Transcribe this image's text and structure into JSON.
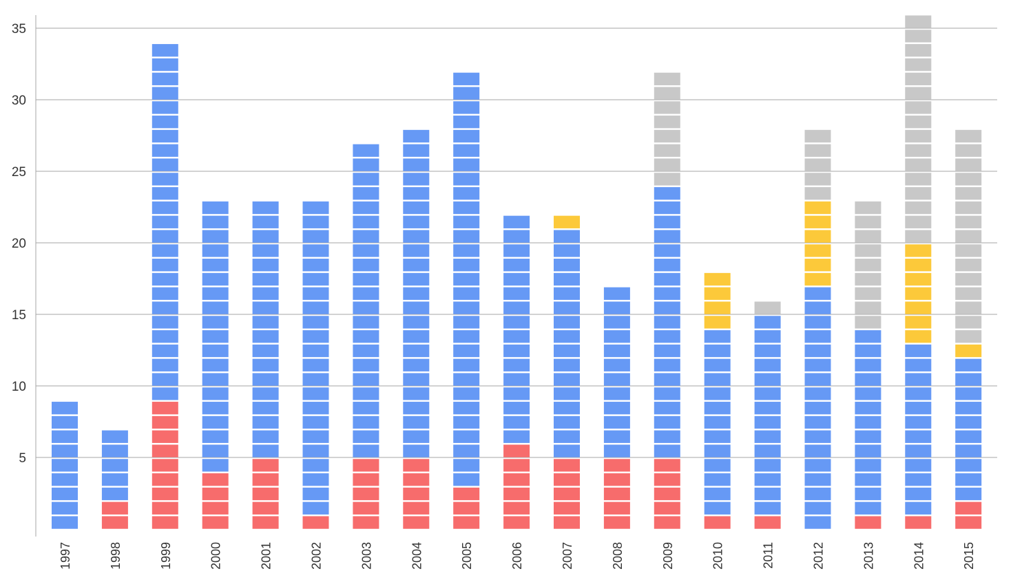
{
  "chart_data": {
    "type": "bar",
    "stacked": true,
    "style": "unit-blocks",
    "title": "",
    "xlabel": "",
    "ylabel": "",
    "ylim": [
      0,
      35
    ],
    "yticks": [
      5,
      10,
      15,
      20,
      25,
      30,
      35
    ],
    "grid": true,
    "legend": "none",
    "categories": [
      "1997",
      "1998",
      "1999",
      "2000",
      "2001",
      "2002",
      "2003",
      "2004",
      "2005",
      "2006",
      "2007",
      "2008",
      "2009",
      "2010",
      "2011",
      "2012",
      "2013",
      "2014",
      "2015"
    ],
    "series": [
      {
        "color": "#f76c6c",
        "values": [
          0,
          2,
          9,
          4,
          5,
          1,
          5,
          5,
          3,
          6,
          5,
          5,
          5,
          1,
          1,
          0,
          1,
          1,
          2
        ]
      },
      {
        "color": "#6699f5",
        "values": [
          9,
          5,
          25,
          19,
          18,
          22,
          22,
          23,
          29,
          16,
          16,
          12,
          19,
          13,
          14,
          17,
          13,
          12,
          10
        ]
      },
      {
        "color": "#fcc93a",
        "values": [
          0,
          0,
          0,
          0,
          0,
          0,
          0,
          0,
          0,
          0,
          1,
          0,
          0,
          4,
          0,
          6,
          0,
          7,
          1
        ]
      },
      {
        "color": "#c8c8c8",
        "values": [
          0,
          0,
          0,
          0,
          0,
          0,
          0,
          0,
          0,
          0,
          0,
          0,
          8,
          0,
          1,
          5,
          9,
          16,
          15
        ]
      }
    ]
  }
}
